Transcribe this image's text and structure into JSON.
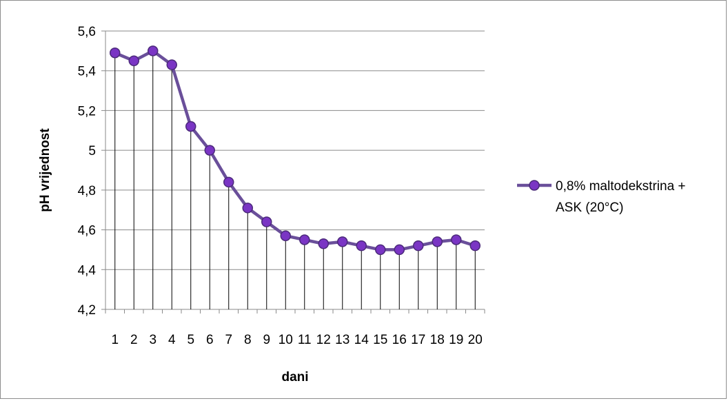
{
  "chart_data": {
    "type": "line",
    "title": "",
    "xlabel": "dani",
    "ylabel": "pH vrijednost",
    "categories": [
      "1",
      "2",
      "3",
      "4",
      "5",
      "6",
      "7",
      "8",
      "9",
      "10",
      "11",
      "12",
      "13",
      "14",
      "15",
      "16",
      "17",
      "18",
      "19",
      "20"
    ],
    "series": [
      {
        "name": "0,8% maltodekstrina + ASK (20°C)",
        "legend_lines": [
          "0,8% maltodekstrina +",
          "ASK (20°C)"
        ],
        "values": [
          5.49,
          5.45,
          5.5,
          5.43,
          5.12,
          5.0,
          4.84,
          4.71,
          4.64,
          4.57,
          4.55,
          4.53,
          4.54,
          4.52,
          4.5,
          4.5,
          4.52,
          4.54,
          4.55,
          4.52
        ],
        "line_color": "#6a4f9a",
        "marker_color": "#7a35c4",
        "marker_edge": "#4b2a7a"
      }
    ],
    "ylim": [
      4.2,
      5.6
    ],
    "yticks": [
      4.2,
      4.4,
      4.6,
      4.8,
      5.0,
      5.2,
      5.4,
      5.6
    ],
    "ytick_labels": [
      "4,2",
      "4,4",
      "4,6",
      "4,8",
      "5",
      "5,2",
      "5,4",
      "5,6"
    ],
    "grid": true,
    "drop_lines": true,
    "legend_position": "right"
  }
}
